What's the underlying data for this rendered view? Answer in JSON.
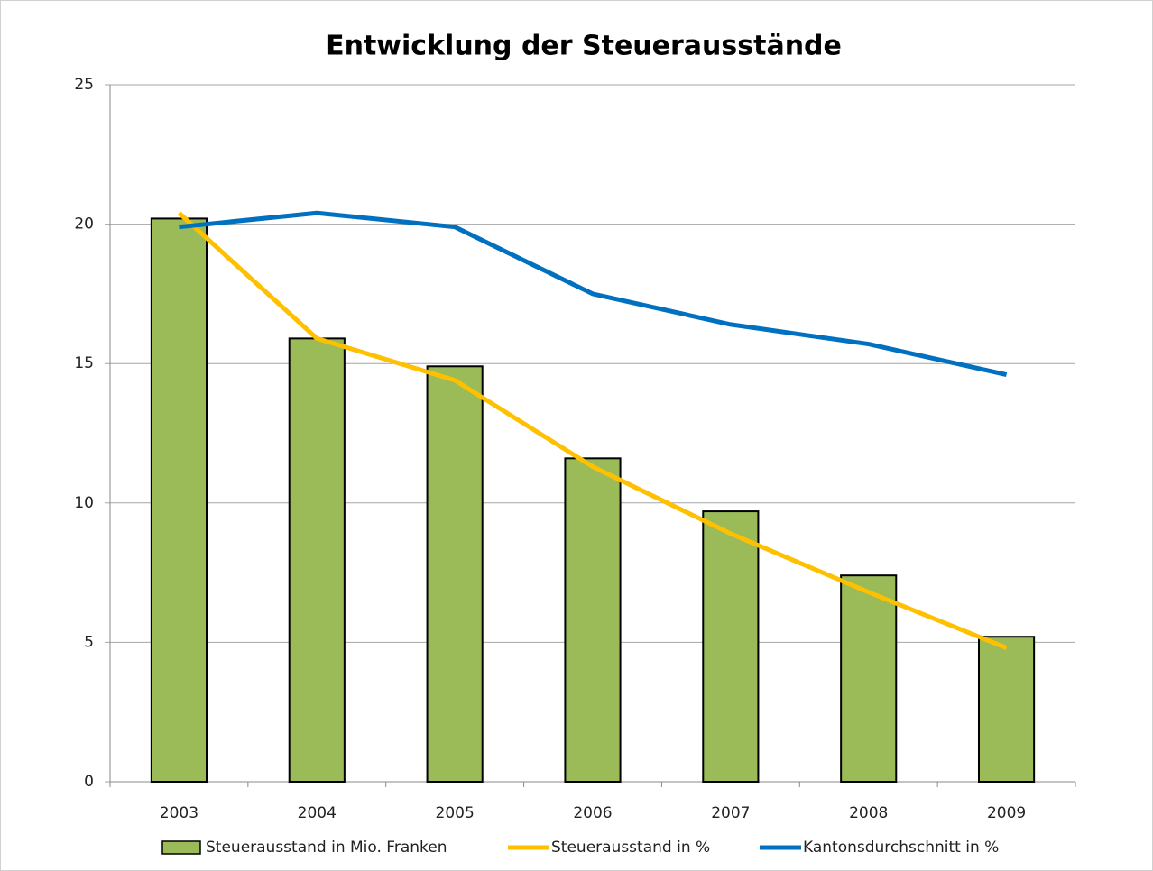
{
  "chart_data": {
    "type": "bar",
    "title": "Entwicklung der Steuerausstände",
    "categories": [
      "2003",
      "2004",
      "2005",
      "2006",
      "2007",
      "2008",
      "2009"
    ],
    "series": [
      {
        "name": "Steuerausstand in Mio. Franken",
        "type": "bar",
        "color": "#9bbb59",
        "values": [
          20.2,
          15.9,
          14.9,
          11.6,
          9.7,
          7.4,
          5.2
        ]
      },
      {
        "name": "Steuerausstand in %",
        "type": "line",
        "color": "#ffc000",
        "values": [
          20.4,
          15.9,
          14.4,
          11.3,
          8.9,
          6.8,
          4.8
        ]
      },
      {
        "name": "Kantonsdurchschnitt in %",
        "type": "line",
        "color": "#0070c0",
        "values": [
          19.9,
          20.4,
          19.9,
          17.5,
          16.4,
          15.7,
          14.6
        ]
      }
    ],
    "ylim": [
      0,
      25
    ],
    "yticks": [
      0,
      5,
      10,
      15,
      20,
      25
    ],
    "grid": true,
    "legend": "bottom"
  }
}
